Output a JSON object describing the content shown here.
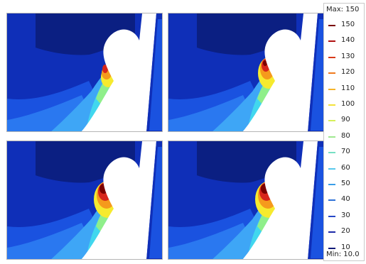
{
  "panels": [
    {
      "id": "p0",
      "hotspot": "small"
    },
    {
      "id": "p1",
      "hotspot": "medium"
    },
    {
      "id": "p2",
      "hotspot": "large"
    },
    {
      "id": "p3",
      "hotspot": "large"
    }
  ],
  "legend": {
    "max_label": "Max: 150",
    "min_label": "Min: 10.0",
    "ticks": [
      "150",
      "140",
      "130",
      "120",
      "110",
      "100",
      "90",
      "80",
      "70",
      "60",
      "50",
      "40",
      "30",
      "20",
      "10"
    ],
    "colors": [
      "#7a0000",
      "#b01010",
      "#d83a1a",
      "#f07a1e",
      "#f6b42a",
      "#f3e23a",
      "#d6f05a",
      "#9fe88f",
      "#76e0c4",
      "#58c8ec",
      "#3a9ee8",
      "#2f72d8",
      "#2648c8",
      "#1c2aa8",
      "#101a78"
    ]
  },
  "colors": {
    "navy": "#0b1f82",
    "deep": "#0f2fb8",
    "blue": "#1a52e0",
    "mid": "#2a78f0",
    "light": "#3ea6f6",
    "cyan": "#41d7ee",
    "green": "#8fef8a",
    "yellow": "#f6ea2e",
    "orange": "#f59a1c",
    "red": "#d7261b",
    "darkred": "#7a0000",
    "white": "#ffffff"
  }
}
